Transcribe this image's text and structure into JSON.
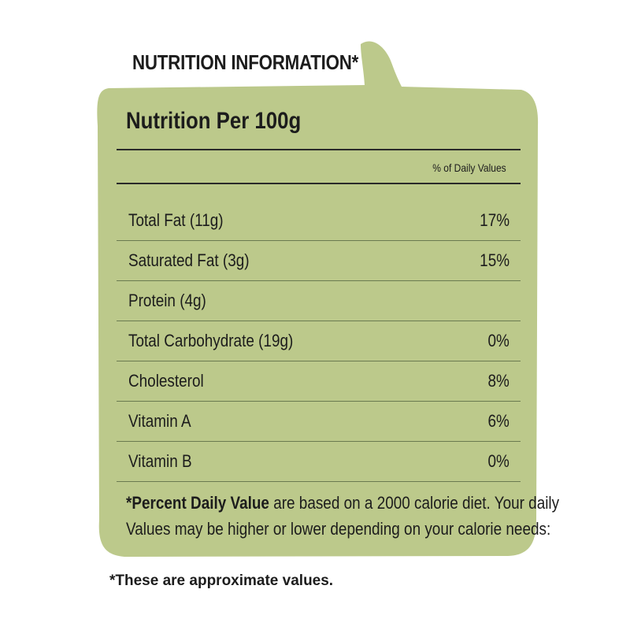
{
  "title": "NUTRITION INFORMATION*",
  "panel": {
    "heading": "Nutrition Per 100g",
    "column_header": "% of Daily Values",
    "background_color": "#bcc98b",
    "rows": [
      {
        "label": "Total Fat (11g)",
        "percent": "17%"
      },
      {
        "label": "Saturated Fat (3g)",
        "percent": "15%"
      },
      {
        "label": "Protein (4g)",
        "percent": ""
      },
      {
        "label": "Total Carbohydrate (19g)",
        "percent": "0%"
      },
      {
        "label": "Cholesterol",
        "percent": "8%"
      },
      {
        "label": "Vitamin A",
        "percent": "6%"
      },
      {
        "label": "Vitamin B",
        "percent": "0%"
      }
    ],
    "footnote": {
      "bold": "*Percent Daily Value",
      "line1_rest": " are based on a 2000 calorie diet. Your daily",
      "line2": "Values may be higher or lower depending on your calorie needs:"
    }
  },
  "approx_note": "*These are approximate values."
}
